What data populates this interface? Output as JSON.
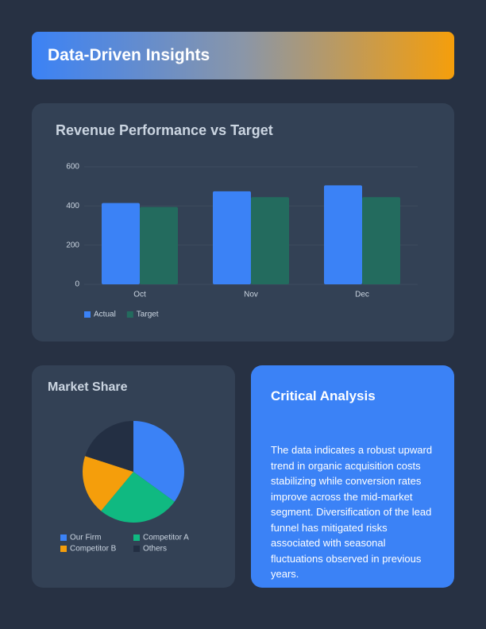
{
  "header": {
    "title": "Data-Driven Insights"
  },
  "chart_data": [
    {
      "type": "bar",
      "title": "Revenue Performance vs Target",
      "categories": [
        "Oct",
        "Nov",
        "Dec"
      ],
      "series": [
        {
          "name": "Actual",
          "color": "#3b82f6",
          "values": [
            415,
            475,
            505
          ]
        },
        {
          "name": "Target",
          "color": "#236b5e",
          "values": [
            395,
            445,
            445
          ]
        }
      ],
      "ylim": [
        0,
        600
      ],
      "yticks": [
        0,
        200,
        400,
        600
      ],
      "grid": true
    },
    {
      "type": "pie",
      "title": "Market Share",
      "categories": [
        "Our Firm",
        "Competitor A",
        "Competitor B",
        "Others"
      ],
      "values": [
        35,
        26,
        19,
        20
      ],
      "colors": [
        "#3b82f6",
        "#10b981",
        "#f59e0b",
        "#232f43"
      ]
    }
  ],
  "analysis": {
    "title": "Critical Analysis",
    "text": "The data indicates a robust upward trend in organic acquisition costs stabilizing while conversion rates improve across the mid-market segment. Diversification of the lead funnel has mitigated risks associated with seasonal fluctuations observed in previous years."
  }
}
